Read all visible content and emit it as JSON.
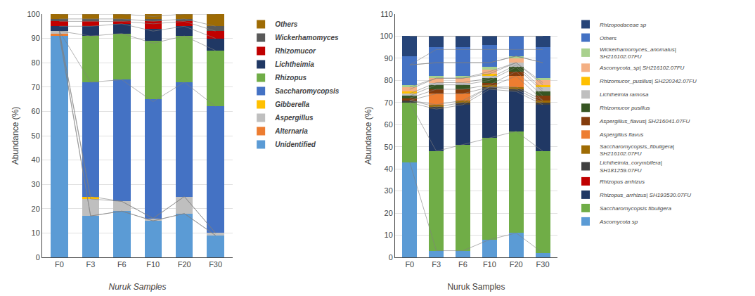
{
  "chart_data": [
    {
      "type": "bar",
      "stacked": true,
      "categories": [
        "F0",
        "F3",
        "F6",
        "F10",
        "F20",
        "F30"
      ],
      "xlabel": "Nuruk Samples",
      "ylabel": "Abundance (%)",
      "ylim": [
        0,
        100
      ],
      "yticks": [
        0,
        10,
        20,
        30,
        40,
        50,
        60,
        70,
        80,
        90,
        100
      ],
      "grid": true,
      "legend": "right",
      "series": [
        {
          "name": "Unidentified",
          "color": "#5B9BD5",
          "values": [
            91,
            17,
            19,
            15,
            18,
            9
          ]
        },
        {
          "name": "Alternaria",
          "color": "#ED7D31",
          "values": [
            1,
            0,
            0,
            0,
            0,
            0
          ]
        },
        {
          "name": "Aspergillus",
          "color": "#BFBFBF",
          "values": [
            1,
            7,
            4,
            1,
            7,
            1
          ]
        },
        {
          "name": "Gibberella",
          "color": "#FFC000",
          "values": [
            0,
            1,
            0,
            0,
            0,
            0
          ]
        },
        {
          "name": "Saccharomycopsis",
          "color": "#4472C4",
          "values": [
            0,
            47,
            50,
            49,
            47,
            52
          ]
        },
        {
          "name": "Rhizopus",
          "color": "#70AD47",
          "values": [
            0,
            19,
            19,
            24,
            19,
            23
          ]
        },
        {
          "name": "Lichtheimia",
          "color": "#203864",
          "values": [
            2,
            4,
            4,
            5,
            4,
            5
          ]
        },
        {
          "name": "Rhizomucor",
          "color": "#C00000",
          "values": [
            2,
            2,
            1,
            3,
            2,
            3
          ]
        },
        {
          "name": "Wickerhamomyces",
          "color": "#595959",
          "values": [
            1,
            1,
            1,
            1,
            1,
            2
          ]
        },
        {
          "name": "Others",
          "color": "#9E6B04",
          "values": [
            2,
            2,
            2,
            2,
            2,
            5
          ]
        },
        {
          "type": "line",
          "color": "#808080",
          "values": [
            91,
            17,
            19,
            15,
            18,
            9
          ]
        },
        {
          "type": "line",
          "color": "#808080",
          "values": [
            92,
            17,
            19,
            15,
            18,
            9
          ]
        },
        {
          "type": "line",
          "color": "#808080",
          "values": [
            93,
            24,
            23,
            16,
            25,
            10
          ]
        },
        {
          "type": "line",
          "color": "#808080",
          "values": [
            93,
            25,
            23,
            16,
            25,
            10
          ]
        },
        {
          "type": "line",
          "color": "#808080",
          "values": [
            93,
            72,
            73,
            64,
            72,
            62
          ]
        },
        {
          "type": "line",
          "color": "#808080",
          "values": [
            93,
            91,
            92,
            88,
            91,
            85
          ]
        },
        {
          "type": "line",
          "color": "#808080",
          "values": [
            95,
            95,
            96,
            93,
            95,
            90
          ]
        },
        {
          "type": "line",
          "color": "#808080",
          "values": [
            97,
            97,
            97,
            96,
            97,
            93
          ]
        },
        {
          "type": "line",
          "color": "#808080",
          "values": [
            98,
            98,
            98,
            97,
            98,
            95
          ]
        },
        {
          "type": "line",
          "color": "#808080",
          "values": [
            100,
            100,
            100,
            99,
            100,
            100
          ]
        }
      ]
    },
    {
      "type": "bar",
      "stacked": true,
      "categories": [
        "F0",
        "F3",
        "F6",
        "F10",
        "F20",
        "F30"
      ],
      "xlabel": "Nuruk Samples",
      "ylabel": "Abundance (%)",
      "ylim": [
        0,
        110
      ],
      "yticks": [
        0,
        10,
        20,
        30,
        40,
        50,
        60,
        70,
        80,
        90,
        100,
        110
      ],
      "grid": true,
      "legend": "right",
      "series": [
        {
          "name": "Ascomycota sp",
          "color": "#5B9BD5",
          "values": [
            43,
            3,
            3,
            8,
            11,
            2
          ]
        },
        {
          "name": "Saccharomycopsis fibuligera",
          "color": "#70AD47",
          "values": [
            27,
            45,
            48,
            46,
            46,
            46
          ]
        },
        {
          "name": "Rhizopus_arrhizus| SH193530.07FU",
          "color": "#203864",
          "values": [
            0,
            19,
            18,
            22,
            18,
            21
          ]
        },
        {
          "name": "Rhizopus arrhizus",
          "color": "#C00000",
          "values": [
            0,
            0,
            0,
            0,
            0,
            0
          ]
        },
        {
          "name": "Lichtheimia_corymbifera|\nSH181259.07FU",
          "color": "#404040",
          "values": [
            1,
            1,
            1,
            1,
            1,
            1
          ]
        },
        {
          "name": "Saccharomycopsis_fibuligera|\nSH216102.07FU",
          "color": "#9E6B04",
          "values": [
            0,
            1,
            1,
            1,
            1,
            1
          ]
        },
        {
          "name": "Aspergillus flavus",
          "color": "#ED7D31",
          "values": [
            0,
            5,
            3,
            0,
            5,
            0
          ]
        },
        {
          "name": "Aspergillus_flavus| SH216041.07FU",
          "color": "#843C0C",
          "values": [
            1,
            2,
            2,
            1,
            2,
            2
          ]
        },
        {
          "name": "Rhizomucor pusillus",
          "color": "#375623",
          "values": [
            1,
            2,
            2,
            2,
            2,
            2
          ]
        },
        {
          "name": "Lichtheimia ramosa",
          "color": "#BFBFBF",
          "values": [
            1,
            1,
            1,
            1,
            2,
            2
          ]
        },
        {
          "name": "Rhizomucor_pusillus| SH220342.07FU",
          "color": "#FFC000",
          "values": [
            1,
            0,
            0,
            1,
            0,
            1
          ]
        },
        {
          "name": "Ascomycota_sp| SH216102.07FU",
          "color": "#F4B084",
          "values": [
            2,
            2,
            2,
            2,
            2,
            2
          ]
        },
        {
          "name": "Wickerhamomyces_anomalus|\nSH216102.07FU",
          "color": "#A9D18E",
          "values": [
            1,
            1,
            1,
            1,
            1,
            1
          ]
        },
        {
          "name": "Others",
          "color": "#4472C4",
          "values": [
            13,
            13,
            13,
            10,
            9,
            14
          ]
        },
        {
          "name": "Rhizopodaceae sp",
          "color": "#264478",
          "values": [
            9,
            5,
            5,
            4,
            0,
            5
          ]
        },
        {
          "type": "line",
          "color": "#808080",
          "values": [
            43,
            3,
            3,
            8,
            11,
            2
          ]
        },
        {
          "type": "line",
          "color": "#808080",
          "values": [
            70,
            48,
            51,
            54,
            57,
            48
          ]
        },
        {
          "type": "line",
          "color": "#808080",
          "values": [
            70,
            67,
            69,
            76,
            75,
            69
          ]
        },
        {
          "type": "line",
          "color": "#808080",
          "values": [
            71,
            68,
            70,
            77,
            76,
            70
          ]
        },
        {
          "type": "line",
          "color": "#808080",
          "values": [
            71,
            69,
            71,
            77,
            77,
            71
          ]
        },
        {
          "type": "line",
          "color": "#808080",
          "values": [
            71,
            74,
            74,
            77,
            82,
            71
          ]
        },
        {
          "type": "line",
          "color": "#808080",
          "values": [
            72,
            76,
            76,
            78,
            84,
            73
          ]
        },
        {
          "type": "line",
          "color": "#808080",
          "values": [
            73,
            78,
            78,
            80,
            86,
            75
          ]
        },
        {
          "type": "line",
          "color": "#808080",
          "values": [
            74,
            79,
            79,
            81,
            87,
            76
          ]
        },
        {
          "type": "line",
          "color": "#808080",
          "values": [
            76,
            81,
            81,
            83,
            88,
            78
          ]
        },
        {
          "type": "line",
          "color": "#808080",
          "values": [
            77,
            81,
            81,
            84,
            88,
            79
          ]
        },
        {
          "type": "line",
          "color": "#808080",
          "values": [
            87,
            88,
            88,
            88,
            91,
            88
          ]
        },
        {
          "type": "line",
          "color": "#808080",
          "values": [
            87,
            88,
            88,
            88,
            91,
            88
          ]
        },
        {
          "type": "line",
          "color": "#808080",
          "values": [
            87,
            94,
            94,
            94,
            94,
            94
          ]
        },
        {
          "type": "line",
          "color": "#808080",
          "values": [
            100,
            100,
            100,
            100,
            100,
            100
          ]
        }
      ]
    }
  ]
}
